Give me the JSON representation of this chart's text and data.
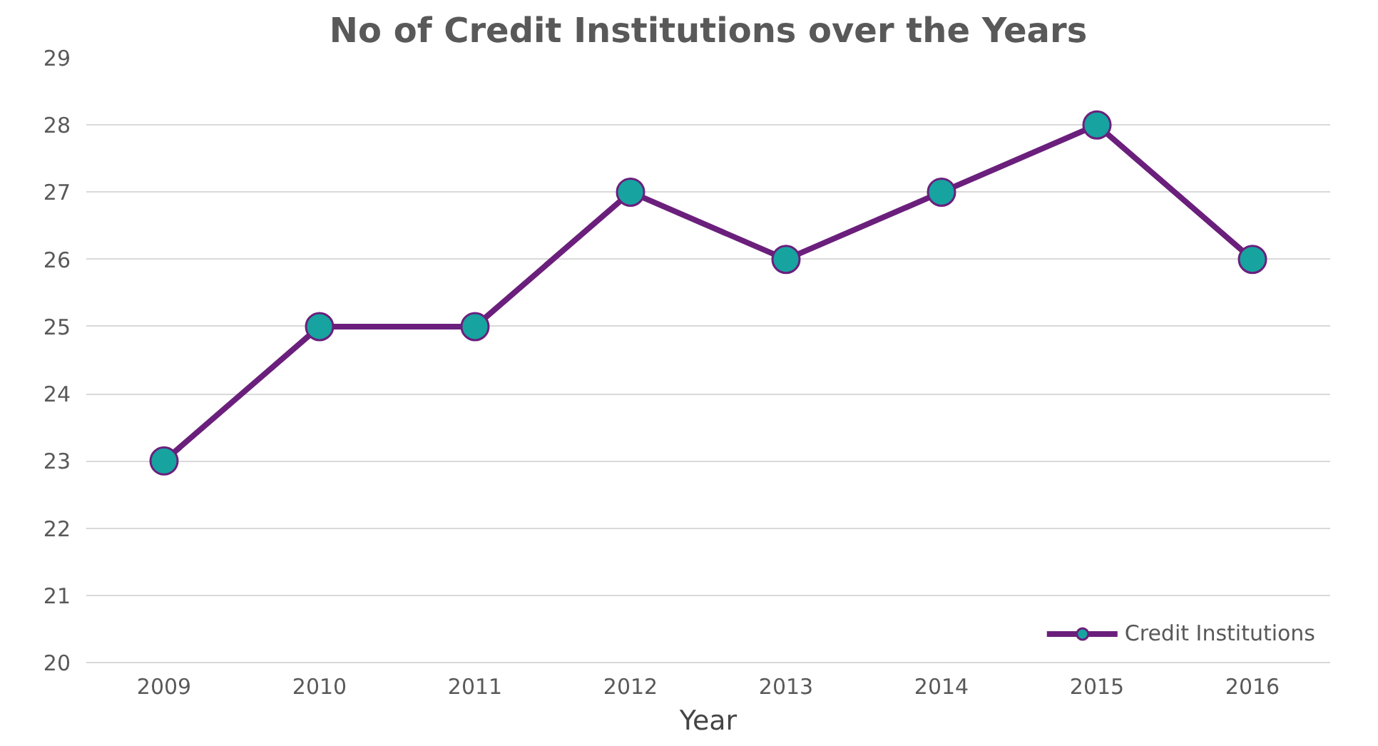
{
  "chart_data": {
    "type": "line",
    "title": "No of Credit Institutions over the Years",
    "xlabel": "Year",
    "categories": [
      "2009",
      "2010",
      "2011",
      "2012",
      "2013",
      "2014",
      "2015",
      "2016"
    ],
    "series": [
      {
        "name": "Credit Institutions",
        "color": "#6b1f7c",
        "colors": [
          "#17a3a0",
          "#17a3a0",
          "#17a3a0",
          "#17a3a0",
          "#17a3a0",
          "#17a3a0",
          "#17a3a0",
          "#17a3a0"
        ],
        "values": [
          23,
          25,
          25,
          27,
          26,
          27,
          28,
          26
        ]
      }
    ],
    "ylim": [
      20,
      29
    ],
    "yticks": [
      20,
      21,
      22,
      23,
      24,
      25,
      26,
      27,
      28,
      29
    ],
    "grid": "y",
    "legend": "bottom right",
    "marker": "circle",
    "line_style": "solid"
  }
}
